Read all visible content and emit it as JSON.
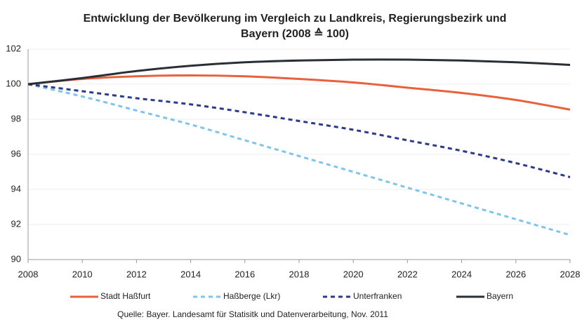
{
  "chart_data": {
    "type": "line",
    "title": [
      "Entwicklung der Bevölkerung im Vergleich zu Landkreis, Regierungsbezirk und",
      "Bayern (2008 ≙ 100)"
    ],
    "x": [
      2008,
      2010,
      2012,
      2014,
      2016,
      2018,
      2020,
      2022,
      2024,
      2026,
      2028
    ],
    "xlim": [
      2008,
      2028
    ],
    "xticks": [
      2008,
      2010,
      2012,
      2014,
      2016,
      2018,
      2020,
      2022,
      2024,
      2026,
      2028
    ],
    "ylim": [
      90,
      102
    ],
    "yticks": [
      90,
      92,
      94,
      96,
      98,
      100,
      102
    ],
    "grid": true,
    "legend": "bottom",
    "series": [
      {
        "name": "Stadt Haßfurt",
        "color": "#e8613c",
        "dashed": false,
        "values": [
          100,
          100.3,
          100.45,
          100.5,
          100.45,
          100.3,
          100.1,
          99.8,
          99.5,
          99.1,
          98.55
        ]
      },
      {
        "name": "Haßberge (Lkr)",
        "color": "#7fc4ec",
        "dashed": true,
        "values": [
          100,
          99.3,
          98.5,
          97.7,
          96.8,
          95.9,
          95.0,
          94.1,
          93.2,
          92.3,
          91.4
        ]
      },
      {
        "name": "Unterfranken",
        "color": "#2b3a8c",
        "dashed": true,
        "values": [
          100,
          99.6,
          99.2,
          98.85,
          98.4,
          97.9,
          97.4,
          96.8,
          96.2,
          95.5,
          94.7
        ]
      },
      {
        "name": "Bayern",
        "color": "#2a2f36",
        "dashed": false,
        "values": [
          100,
          100.35,
          100.75,
          101.05,
          101.25,
          101.35,
          101.4,
          101.4,
          101.35,
          101.25,
          101.1
        ]
      }
    ],
    "source": "Quelle: Bayer. Landesamt für Statisitk und Datenverarbeitung, Nov. 2011"
  }
}
